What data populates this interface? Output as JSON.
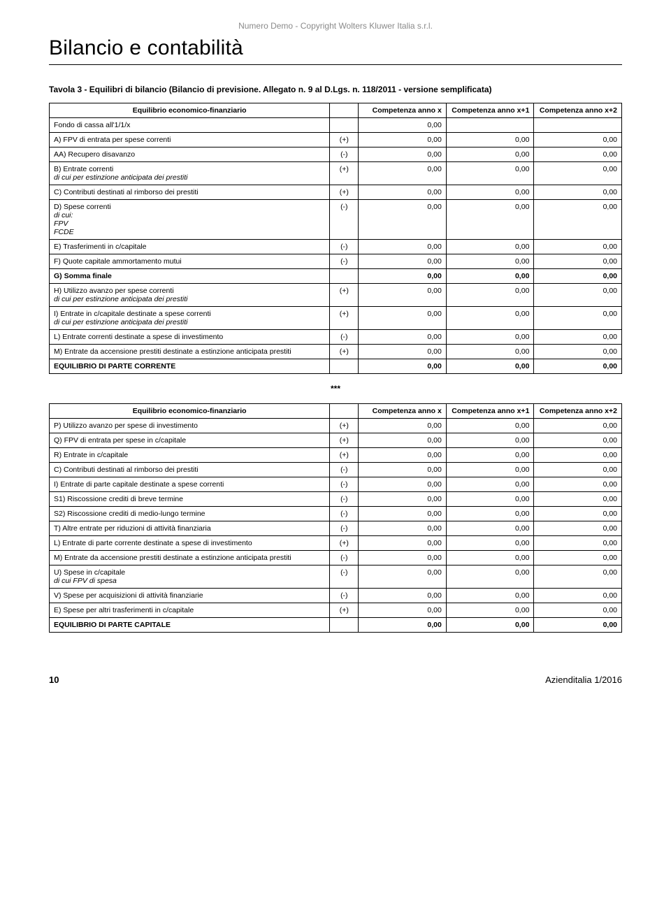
{
  "header": {
    "demo_text": "Numero Demo  - Copyright Wolters Kluwer Italia s.r.l.",
    "section_title": "Bilancio e contabilità"
  },
  "caption": "Tavola 3 - Equilibri di bilancio (Bilancio di previsione. Allegato n. 9 al D.Lgs. n. 118/2011 - versione semplificata)",
  "table1": {
    "head_desc": "Equilibrio economico-finanziario",
    "head_c1": "Competenza anno x",
    "head_c2": "Competenza anno x+1",
    "head_c3": "Competenza anno x+2",
    "rows": [
      {
        "label": "Fondo di cassa all'1/1/x",
        "sign": "",
        "v1": "0,00",
        "v2": "",
        "v3": ""
      },
      {
        "label": "A) FPV di entrata per spese correnti",
        "sign": "(+)",
        "v1": "0,00",
        "v2": "0,00",
        "v3": "0,00"
      },
      {
        "label": "AA) Recupero disavanzo",
        "sign": "(-)",
        "v1": "0,00",
        "v2": "0,00",
        "v3": "0,00"
      },
      {
        "label": "B) Entrate correnti",
        "sub": "di cui per estinzione anticipata dei prestiti",
        "sign": "(+)",
        "v1": "0,00",
        "v2": "0,00",
        "v3": "0,00"
      },
      {
        "label": "C) Contributi destinati al rimborso dei prestiti",
        "sign": "(+)",
        "v1": "0,00",
        "v2": "0,00",
        "v3": "0,00"
      },
      {
        "label": "D) Spese correnti",
        "sub": "di cui:\nFPV\nFCDE",
        "sign": "(-)",
        "v1": "0,00",
        "v2": "0,00",
        "v3": "0,00"
      },
      {
        "label": "E) Trasferimenti in c/capitale",
        "sign": "(-)",
        "v1": "0,00",
        "v2": "0,00",
        "v3": "0,00"
      },
      {
        "label": "F) Quote capitale ammortamento mutui",
        "sign": "(-)",
        "v1": "0,00",
        "v2": "0,00",
        "v3": "0,00"
      },
      {
        "label": "G) Somma finale",
        "bold": true,
        "sign": "",
        "v1": "0,00",
        "v2": "0,00",
        "v3": "0,00"
      },
      {
        "label": "H) Utilizzo avanzo per spese correnti",
        "sub": "di cui per estinzione anticipata dei prestiti",
        "sign": "(+)",
        "v1": "0,00",
        "v2": "0,00",
        "v3": "0,00"
      },
      {
        "label": "I) Entrate in c/capitale destinate a spese correnti",
        "sub": "di cui per estinzione anticipata dei prestiti",
        "sign": "(+)",
        "v1": "0,00",
        "v2": "0,00",
        "v3": "0,00"
      },
      {
        "label": "L) Entrate correnti destinate a spese di investimento",
        "sign": "(-)",
        "v1": "0,00",
        "v2": "0,00",
        "v3": "0,00"
      },
      {
        "label": "M) Entrate da accensione prestiti destinate a estinzione anticipata prestiti",
        "sign": "(+)",
        "v1": "0,00",
        "v2": "0,00",
        "v3": "0,00"
      },
      {
        "label": "EQUILIBRIO DI PARTE CORRENTE",
        "bold": true,
        "sign": "",
        "v1": "0,00",
        "v2": "0,00",
        "v3": "0,00"
      }
    ]
  },
  "separator": "***",
  "table2": {
    "head_desc": "Equilibrio economico-finanziario",
    "head_c1": "Competenza anno x",
    "head_c2": "Competenza anno x+1",
    "head_c3": "Competenza anno x+2",
    "rows": [
      {
        "label": "P) Utilizzo avanzo per spese di investimento",
        "sign": "(+)",
        "v1": "0,00",
        "v2": "0,00",
        "v3": "0,00"
      },
      {
        "label": "Q) FPV di entrata per spese in c/capitale",
        "sign": "(+)",
        "v1": "0,00",
        "v2": "0,00",
        "v3": "0,00"
      },
      {
        "label": "R) Entrate in c/capitale",
        "sign": "(+)",
        "v1": "0,00",
        "v2": "0,00",
        "v3": "0,00"
      },
      {
        "label": "C) Contributi destinati al rimborso dei prestiti",
        "sign": "(-)",
        "v1": "0,00",
        "v2": "0,00",
        "v3": "0,00"
      },
      {
        "label": "I) Entrate di parte capitale destinate a spese correnti",
        "sign": "(-)",
        "v1": "0,00",
        "v2": "0,00",
        "v3": "0,00"
      },
      {
        "label": "S1) Riscossione crediti di breve termine",
        "sign": "(-)",
        "v1": "0,00",
        "v2": "0,00",
        "v3": "0,00"
      },
      {
        "label": "S2) Riscossione crediti di medio-lungo termine",
        "sign": "(-)",
        "v1": "0,00",
        "v2": "0,00",
        "v3": "0,00"
      },
      {
        "label": "T) Altre entrate per riduzioni di attività finanziaria",
        "sign": "(-)",
        "v1": "0,00",
        "v2": "0,00",
        "v3": "0,00"
      },
      {
        "label": "L) Entrate di parte corrente destinate a spese di investimento",
        "sign": "(+)",
        "v1": "0,00",
        "v2": "0,00",
        "v3": "0,00"
      },
      {
        "label": "M) Entrate da accensione prestiti destinate a estinzione anticipata prestiti",
        "sign": "(-)",
        "v1": "0,00",
        "v2": "0,00",
        "v3": "0,00"
      },
      {
        "label": "U) Spese in c/capitale",
        "sub": "di cui FPV di spesa",
        "sign": "(-)",
        "v1": "0,00",
        "v2": "0,00",
        "v3": "0,00"
      },
      {
        "label": "V) Spese per acquisizioni di attività finanziarie",
        "sign": "(-)",
        "v1": "0,00",
        "v2": "0,00",
        "v3": "0,00"
      },
      {
        "label": "E) Spese per altri trasferimenti in c/capitale",
        "sign": "(+)",
        "v1": "0,00",
        "v2": "0,00",
        "v3": "0,00"
      },
      {
        "label": "EQUILIBRIO DI PARTE CAPITALE",
        "bold": true,
        "sign": "",
        "v1": "0,00",
        "v2": "0,00",
        "v3": "0,00"
      }
    ]
  },
  "footer": {
    "page_num": "10",
    "journal": "Azienditalia 1/2016"
  },
  "colors": {
    "text": "#000000",
    "background": "#ffffff",
    "demo_header": "#8a8a8a",
    "border": "#000000"
  }
}
